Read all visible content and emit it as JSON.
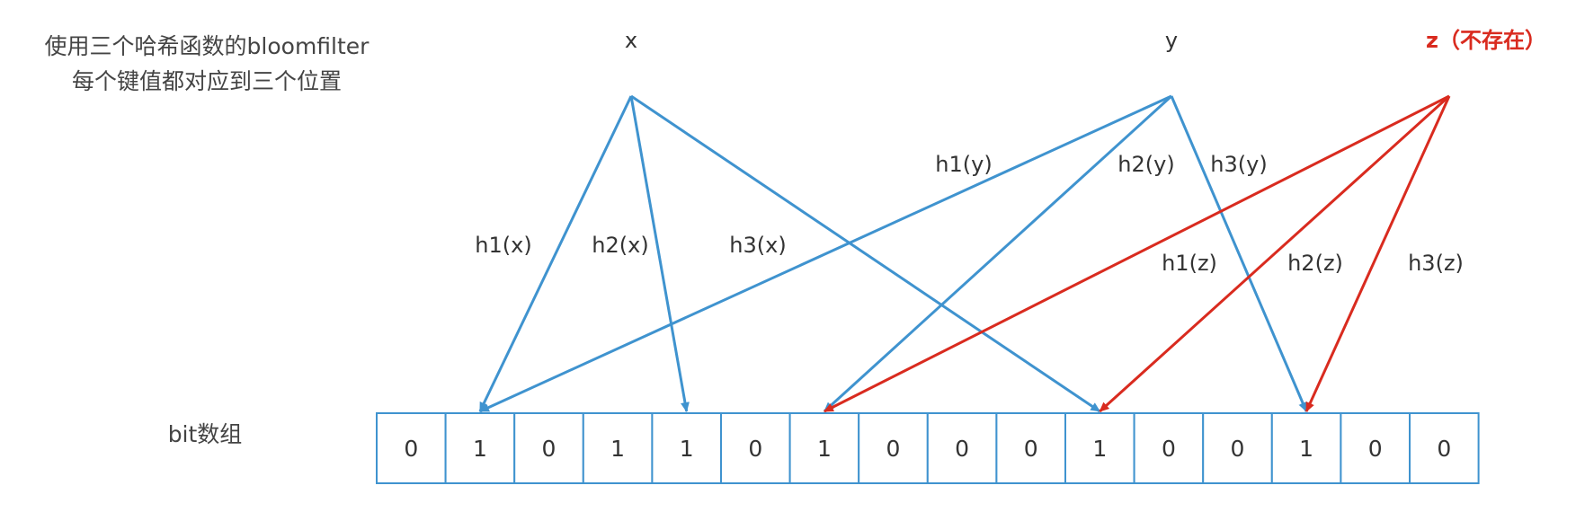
{
  "caption": {
    "line1": "使用三个哈希函数的bloomfilter",
    "line2": "每个键值都对应到三个位置"
  },
  "array_label": "bit数组",
  "bits": [
    "0",
    "1",
    "0",
    "1",
    "1",
    "0",
    "1",
    "0",
    "0",
    "0",
    "1",
    "0",
    "0",
    "1",
    "0",
    "0"
  ],
  "keys": [
    {
      "id": "x",
      "label": "x",
      "exists": true
    },
    {
      "id": "y",
      "label": "y",
      "exists": true
    },
    {
      "id": "z",
      "label": "z（不存在）",
      "exists": false
    }
  ],
  "hashes": [
    {
      "key": "x",
      "label": "h1(x)",
      "target_index": 1
    },
    {
      "key": "x",
      "label": "h2(x)",
      "target_index": 4
    },
    {
      "key": "x",
      "label": "h3(x)",
      "target_index": 10
    },
    {
      "key": "y",
      "label": "h1(y)",
      "target_index": 1
    },
    {
      "key": "y",
      "label": "h2(y)",
      "target_index": 6
    },
    {
      "key": "y",
      "label": "h3(y)",
      "target_index": 13
    },
    {
      "key": "z",
      "label": "h1(z)",
      "target_index": 6
    },
    {
      "key": "z",
      "label": "h2(z)",
      "target_index": 10
    },
    {
      "key": "z",
      "label": "h3(z)",
      "target_index": 13
    }
  ],
  "colors": {
    "existing": "#3f93cf",
    "missing": "#d92b1f"
  }
}
